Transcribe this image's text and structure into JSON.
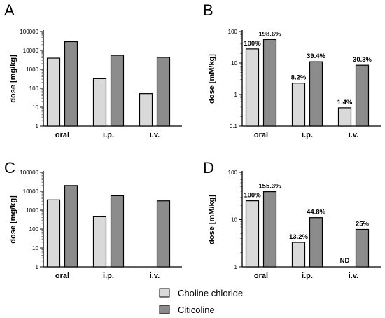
{
  "colors": {
    "choline": "#d9d9d9",
    "citicoline": "#8c8c8c",
    "stroke": "#000000"
  },
  "legend": {
    "items": [
      {
        "label": "Choline chloride",
        "color": "#d9d9d9"
      },
      {
        "label": "Citicoline",
        "color": "#8c8c8c"
      }
    ]
  },
  "chart_data": [
    {
      "panel": "A",
      "type": "bar",
      "yscale": "log",
      "ylabel": "dose [mg/kg]",
      "ylim": [
        1,
        100000
      ],
      "yticks": [
        "1",
        "10",
        "100",
        "1000",
        "10000",
        "100000"
      ],
      "categories": [
        "oral",
        "i.p.",
        "i.v."
      ],
      "series": [
        {
          "name": "Choline chloride",
          "values": [
            3900,
            320,
            52
          ]
        },
        {
          "name": "Citicoline",
          "values": [
            29000,
            5500,
            4300
          ]
        }
      ]
    },
    {
      "panel": "B",
      "type": "bar",
      "yscale": "log",
      "ylabel": "dose [mM/kg]",
      "ylim": [
        0.1,
        100
      ],
      "yticks": [
        "0.1",
        "1",
        "10",
        "100"
      ],
      "categories": [
        "oral",
        "i.p.",
        "i.v."
      ],
      "series": [
        {
          "name": "Choline chloride",
          "values": [
            28,
            2.3,
            0.38
          ],
          "labels": [
            "100%",
            "8.2%",
            "1.4%"
          ]
        },
        {
          "name": "Citicoline",
          "values": [
            56,
            11,
            8.5
          ],
          "labels": [
            "198.6%",
            "39.4%",
            "30.3%"
          ]
        }
      ]
    },
    {
      "panel": "C",
      "type": "bar",
      "yscale": "log",
      "ylabel": "dose [mg/kg]",
      "ylim": [
        1,
        100000
      ],
      "yticks": [
        "1",
        "10",
        "100",
        "1000",
        "10000",
        "100000"
      ],
      "categories": [
        "oral",
        "i.p.",
        "i.v."
      ],
      "series": [
        {
          "name": "Choline chloride",
          "values": [
            3500,
            450,
            null
          ]
        },
        {
          "name": "Citicoline",
          "values": [
            20000,
            5800,
            3100
          ]
        }
      ]
    },
    {
      "panel": "D",
      "type": "bar",
      "yscale": "log",
      "ylabel": "dose [mM/kg]",
      "ylim": [
        1,
        100
      ],
      "yticks": [
        "1",
        "10",
        "100"
      ],
      "categories": [
        "oral",
        "i.p.",
        "i.v."
      ],
      "series": [
        {
          "name": "Choline chloride",
          "values": [
            25,
            3.3,
            null
          ],
          "labels": [
            "100%",
            "13.2%",
            "ND"
          ]
        },
        {
          "name": "Citicoline",
          "values": [
            39,
            11,
            6.2
          ],
          "labels": [
            "155.3%",
            "44.8%",
            "25%"
          ]
        }
      ]
    }
  ]
}
